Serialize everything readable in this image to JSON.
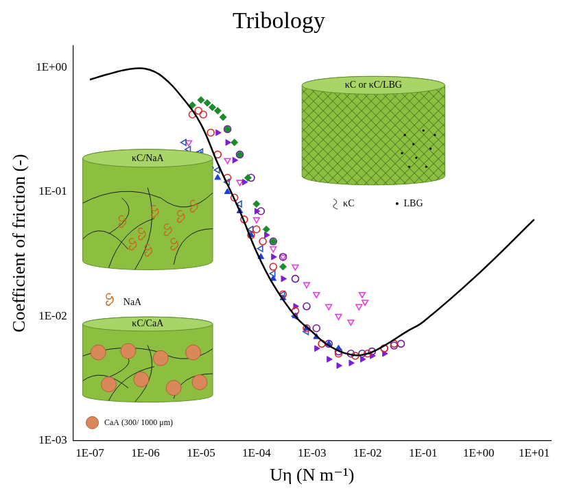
{
  "chart_data": {
    "type": "scatter",
    "title": "Tribology",
    "x_label": "Uη (N m⁻¹)",
    "y_label": "Coefficient of friction (-)",
    "log": true,
    "grid": false,
    "xlim": [
      5e-08,
      20
    ],
    "ylim": [
      0.001,
      1.5
    ],
    "xticks": [
      {
        "value": 1e-07,
        "label": "1E-07"
      },
      {
        "value": 1e-06,
        "label": "1E-06"
      },
      {
        "value": 1e-05,
        "label": "1E-05"
      },
      {
        "value": 0.0001,
        "label": "1E-04"
      },
      {
        "value": 0.001,
        "label": "1E-03"
      },
      {
        "value": 0.01,
        "label": "1E-02"
      },
      {
        "value": 0.1,
        "label": "1E-01"
      },
      {
        "value": 1,
        "label": "1E+00"
      },
      {
        "value": 10,
        "label": "1E+01"
      }
    ],
    "yticks": [
      {
        "value": 0.001,
        "label": "1E-03"
      },
      {
        "value": 0.01,
        "label": "1E-02"
      },
      {
        "value": 0.1,
        "label": "1E-01"
      },
      {
        "value": 1,
        "label": "1E+00"
      }
    ],
    "series": [
      {
        "color": "#d62728",
        "marker": "open_circle",
        "x": [
          7e-06,
          9e-06,
          1.1e-05,
          1.5e-05,
          2e-05,
          3e-05,
          4e-05,
          6e-05,
          8e-05,
          0.0001,
          0.00013,
          0.0002,
          0.0003,
          0.0005,
          0.0008,
          0.0015,
          0.003,
          0.006,
          0.01,
          0.02,
          0.03
        ],
        "values": [
          0.42,
          0.45,
          0.42,
          0.3,
          0.2,
          0.13,
          0.09,
          0.06,
          0.045,
          0.05,
          0.04,
          0.025,
          0.015,
          0.011,
          0.008,
          0.006,
          0.005,
          0.0048,
          0.005,
          0.0055,
          0.006
        ]
      },
      {
        "color": "#2a52be",
        "marker": "open_triangle_left",
        "x": [
          5e-06,
          6e-06,
          8e-06,
          1e-05,
          1.3e-05,
          2e-05,
          3e-05,
          5e-05,
          8e-05,
          0.00012,
          0.0002,
          0.0003,
          0.0005,
          0.0008
        ],
        "values": [
          0.25,
          0.22,
          0.2,
          0.21,
          0.18,
          0.15,
          0.12,
          0.08,
          0.05,
          0.035,
          0.022,
          0.015,
          0.01,
          0.0075
        ]
      },
      {
        "color": "#1f3fd6",
        "marker": "filled_triangle",
        "x": [
          1e-05,
          1.5e-05,
          2e-05,
          3e-05,
          5e-05,
          8e-05,
          0.00012,
          0.0002,
          0.0003,
          0.0005,
          0.0008,
          0.0012,
          0.002,
          0.003
        ],
        "values": [
          0.2,
          0.16,
          0.13,
          0.1,
          0.07,
          0.045,
          0.03,
          0.02,
          0.014,
          0.01,
          0.008,
          0.0068,
          0.006,
          0.0055
        ]
      },
      {
        "color": "#1e8a2e",
        "marker": "filled_diamond",
        "x": [
          7e-06,
          1e-05,
          1.3e-05,
          1.6e-05,
          2e-05,
          2.5e-05,
          3e-05,
          4e-05,
          5e-05,
          7e-05,
          0.0001,
          0.00015,
          0.0002,
          0.0003
        ],
        "values": [
          0.5,
          0.55,
          0.52,
          0.48,
          0.45,
          0.4,
          0.32,
          0.25,
          0.2,
          0.13,
          0.08,
          0.05,
          0.04,
          0.025
        ]
      },
      {
        "color": "#7b1fd6",
        "marker": "filled_triangle_right",
        "x": [
          2e-05,
          3e-05,
          4e-05,
          6e-05,
          0.0001,
          0.00015,
          0.0002,
          0.0003,
          0.0005,
          0.0008,
          0.0012,
          0.002,
          0.003,
          0.005,
          0.008,
          0.012,
          0.02
        ],
        "values": [
          0.3,
          0.25,
          0.18,
          0.12,
          0.07,
          0.045,
          0.03,
          0.02,
          0.012,
          0.008,
          0.0055,
          0.0045,
          0.004,
          0.0042,
          0.0045,
          0.0048,
          0.005
        ]
      },
      {
        "color": "#6a1b9a",
        "marker": "open_circle",
        "x": [
          3e-05,
          5e-05,
          8e-05,
          0.00012,
          0.0002,
          0.0003,
          0.0005,
          0.0008,
          0.0012,
          0.002,
          0.003,
          0.005,
          0.008,
          0.012,
          0.02,
          0.03,
          0.04
        ],
        "values": [
          0.32,
          0.2,
          0.13,
          0.07,
          0.04,
          0.03,
          0.02,
          0.012,
          0.008,
          0.006,
          0.0052,
          0.005,
          0.005,
          0.0052,
          0.0055,
          0.0058,
          0.006
        ]
      },
      {
        "color": "#e040e0",
        "marker": "open_triangle_down",
        "x": [
          5e-06,
          6e-06,
          3e-05,
          5e-05,
          0.0001,
          0.0002,
          0.0003,
          0.0005,
          0.0008,
          0.0012,
          0.002,
          0.003,
          0.005,
          0.007,
          0.008,
          0.009
        ],
        "values": [
          0.2,
          0.25,
          0.18,
          0.12,
          0.06,
          0.035,
          0.03,
          0.025,
          0.018,
          0.015,
          0.012,
          0.01,
          0.009,
          0.012,
          0.015,
          0.013
        ]
      },
      {
        "type": "line",
        "color": "#000000",
        "line_style": "solid",
        "marker": "none",
        "x": [
          1e-07,
          2e-07,
          5e-07,
          1e-06,
          2e-06,
          5e-06,
          1e-05,
          2e-05,
          5e-05,
          0.0001,
          0.0002,
          0.0005,
          0.001,
          0.002,
          0.005,
          0.01,
          0.02,
          0.05,
          0.1,
          1,
          10
        ],
        "values": [
          0.8,
          0.88,
          0.97,
          0.98,
          0.85,
          0.55,
          0.35,
          0.17,
          0.07,
          0.033,
          0.018,
          0.01,
          0.0075,
          0.0058,
          0.0049,
          0.005,
          0.0058,
          0.0075,
          0.009,
          0.022,
          0.06
        ]
      }
    ],
    "annotations": [
      "κC or κC/LBG",
      "κC",
      "LBG",
      "κC/NaA",
      "NaA",
      "κC/CaA",
      "CaA (300/ 1000 μm)"
    ]
  }
}
